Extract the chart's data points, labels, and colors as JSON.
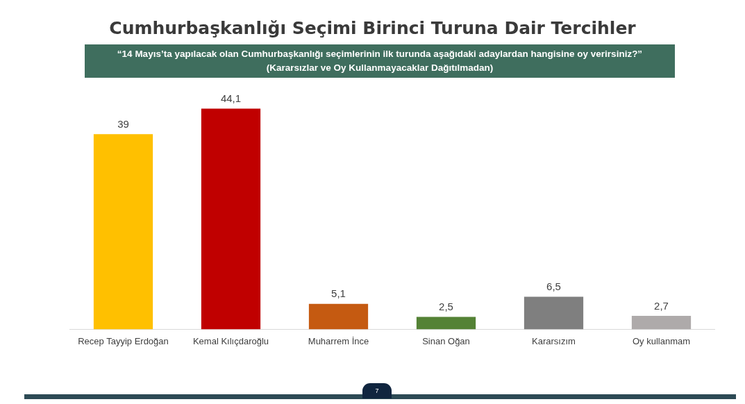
{
  "chart_data": {
    "type": "bar",
    "title": "Cumhurbaşkanlığı Seçimi Birinci Turuna Dair Tercihler",
    "subtitle": "“14 Mayıs’ta yapılacak olan Cumhurbaşkanlığı seçimlerinin ilk turunda aşağıdaki adaylardan hangisine oy verirsiniz?”\n(Kararsızlar ve Oy Kullanmayacaklar Dağıtılmadan)",
    "categories": [
      "Recep Tayyip Erdoğan",
      "Kemal Kılıçdaroğlu",
      "Muharrem İnce",
      "Sinan Oğan",
      "Kararsızım",
      "Oy kullanmam"
    ],
    "values": [
      39,
      44.1,
      5.1,
      2.5,
      6.5,
      2.7
    ],
    "colors": [
      "#ffc000",
      "#c00000",
      "#c55a11",
      "#548235",
      "#7f7f7f",
      "#aeaaaa"
    ],
    "value_labels": [
      "39",
      "44,1",
      "5,1",
      "2,5",
      "6,5",
      "2,7"
    ],
    "annotations": [
      "7"
    ],
    "grid": false,
    "legend": false
  }
}
